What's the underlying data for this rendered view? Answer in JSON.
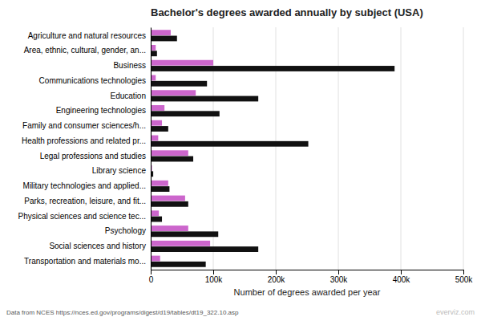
{
  "chart_data": {
    "type": "bar",
    "orientation": "horizontal",
    "title": "Bachelor's degrees awarded annually by subject (USA)",
    "xlabel": "Number of degrees awarded per year",
    "annotations": [
      "Data from NCES https://nces.ed.gov/programs/digest/d19/tables/dt19_322.10.asp",
      "everviz.com"
    ],
    "categories": [
      "Agriculture and natural resources",
      "Area, ethnic, cultural, gender, an...",
      "Business",
      "Communications technologies",
      "Education",
      "Engineering technologies",
      "Family and consumer sciences/h...",
      "Health professions and related pr...",
      "Legal professions and studies",
      "Library science",
      "Military technologies and applied...",
      "Parks, recreation, leisure, and fit...",
      "Physical sciences and science tec...",
      "Psychology",
      "Social sciences and history",
      "Transportation and materials mo..."
    ],
    "series": [
      {
        "color": "#cc66cc",
        "values": [
          32000,
          8000,
          100000,
          8000,
          72000,
          22000,
          18000,
          12000,
          60000,
          2000,
          28000,
          55000,
          13000,
          60000,
          95000,
          15000
        ]
      },
      {
        "color": "#111111",
        "values": [
          42000,
          10000,
          390000,
          90000,
          172000,
          110000,
          28000,
          252000,
          68000,
          4000,
          30000,
          60000,
          18000,
          108000,
          172000,
          88000
        ]
      }
    ],
    "xlim": [
      0,
      500000
    ],
    "xticks": [
      0,
      {
        "value": 100000,
        "label": "100k"
      },
      {
        "value": 200000,
        "label": "200k"
      },
      {
        "value": 300000,
        "label": "300k"
      },
      {
        "value": 400000,
        "label": "400k"
      },
      {
        "value": 500000,
        "label": "500k"
      }
    ],
    "grid": true
  }
}
